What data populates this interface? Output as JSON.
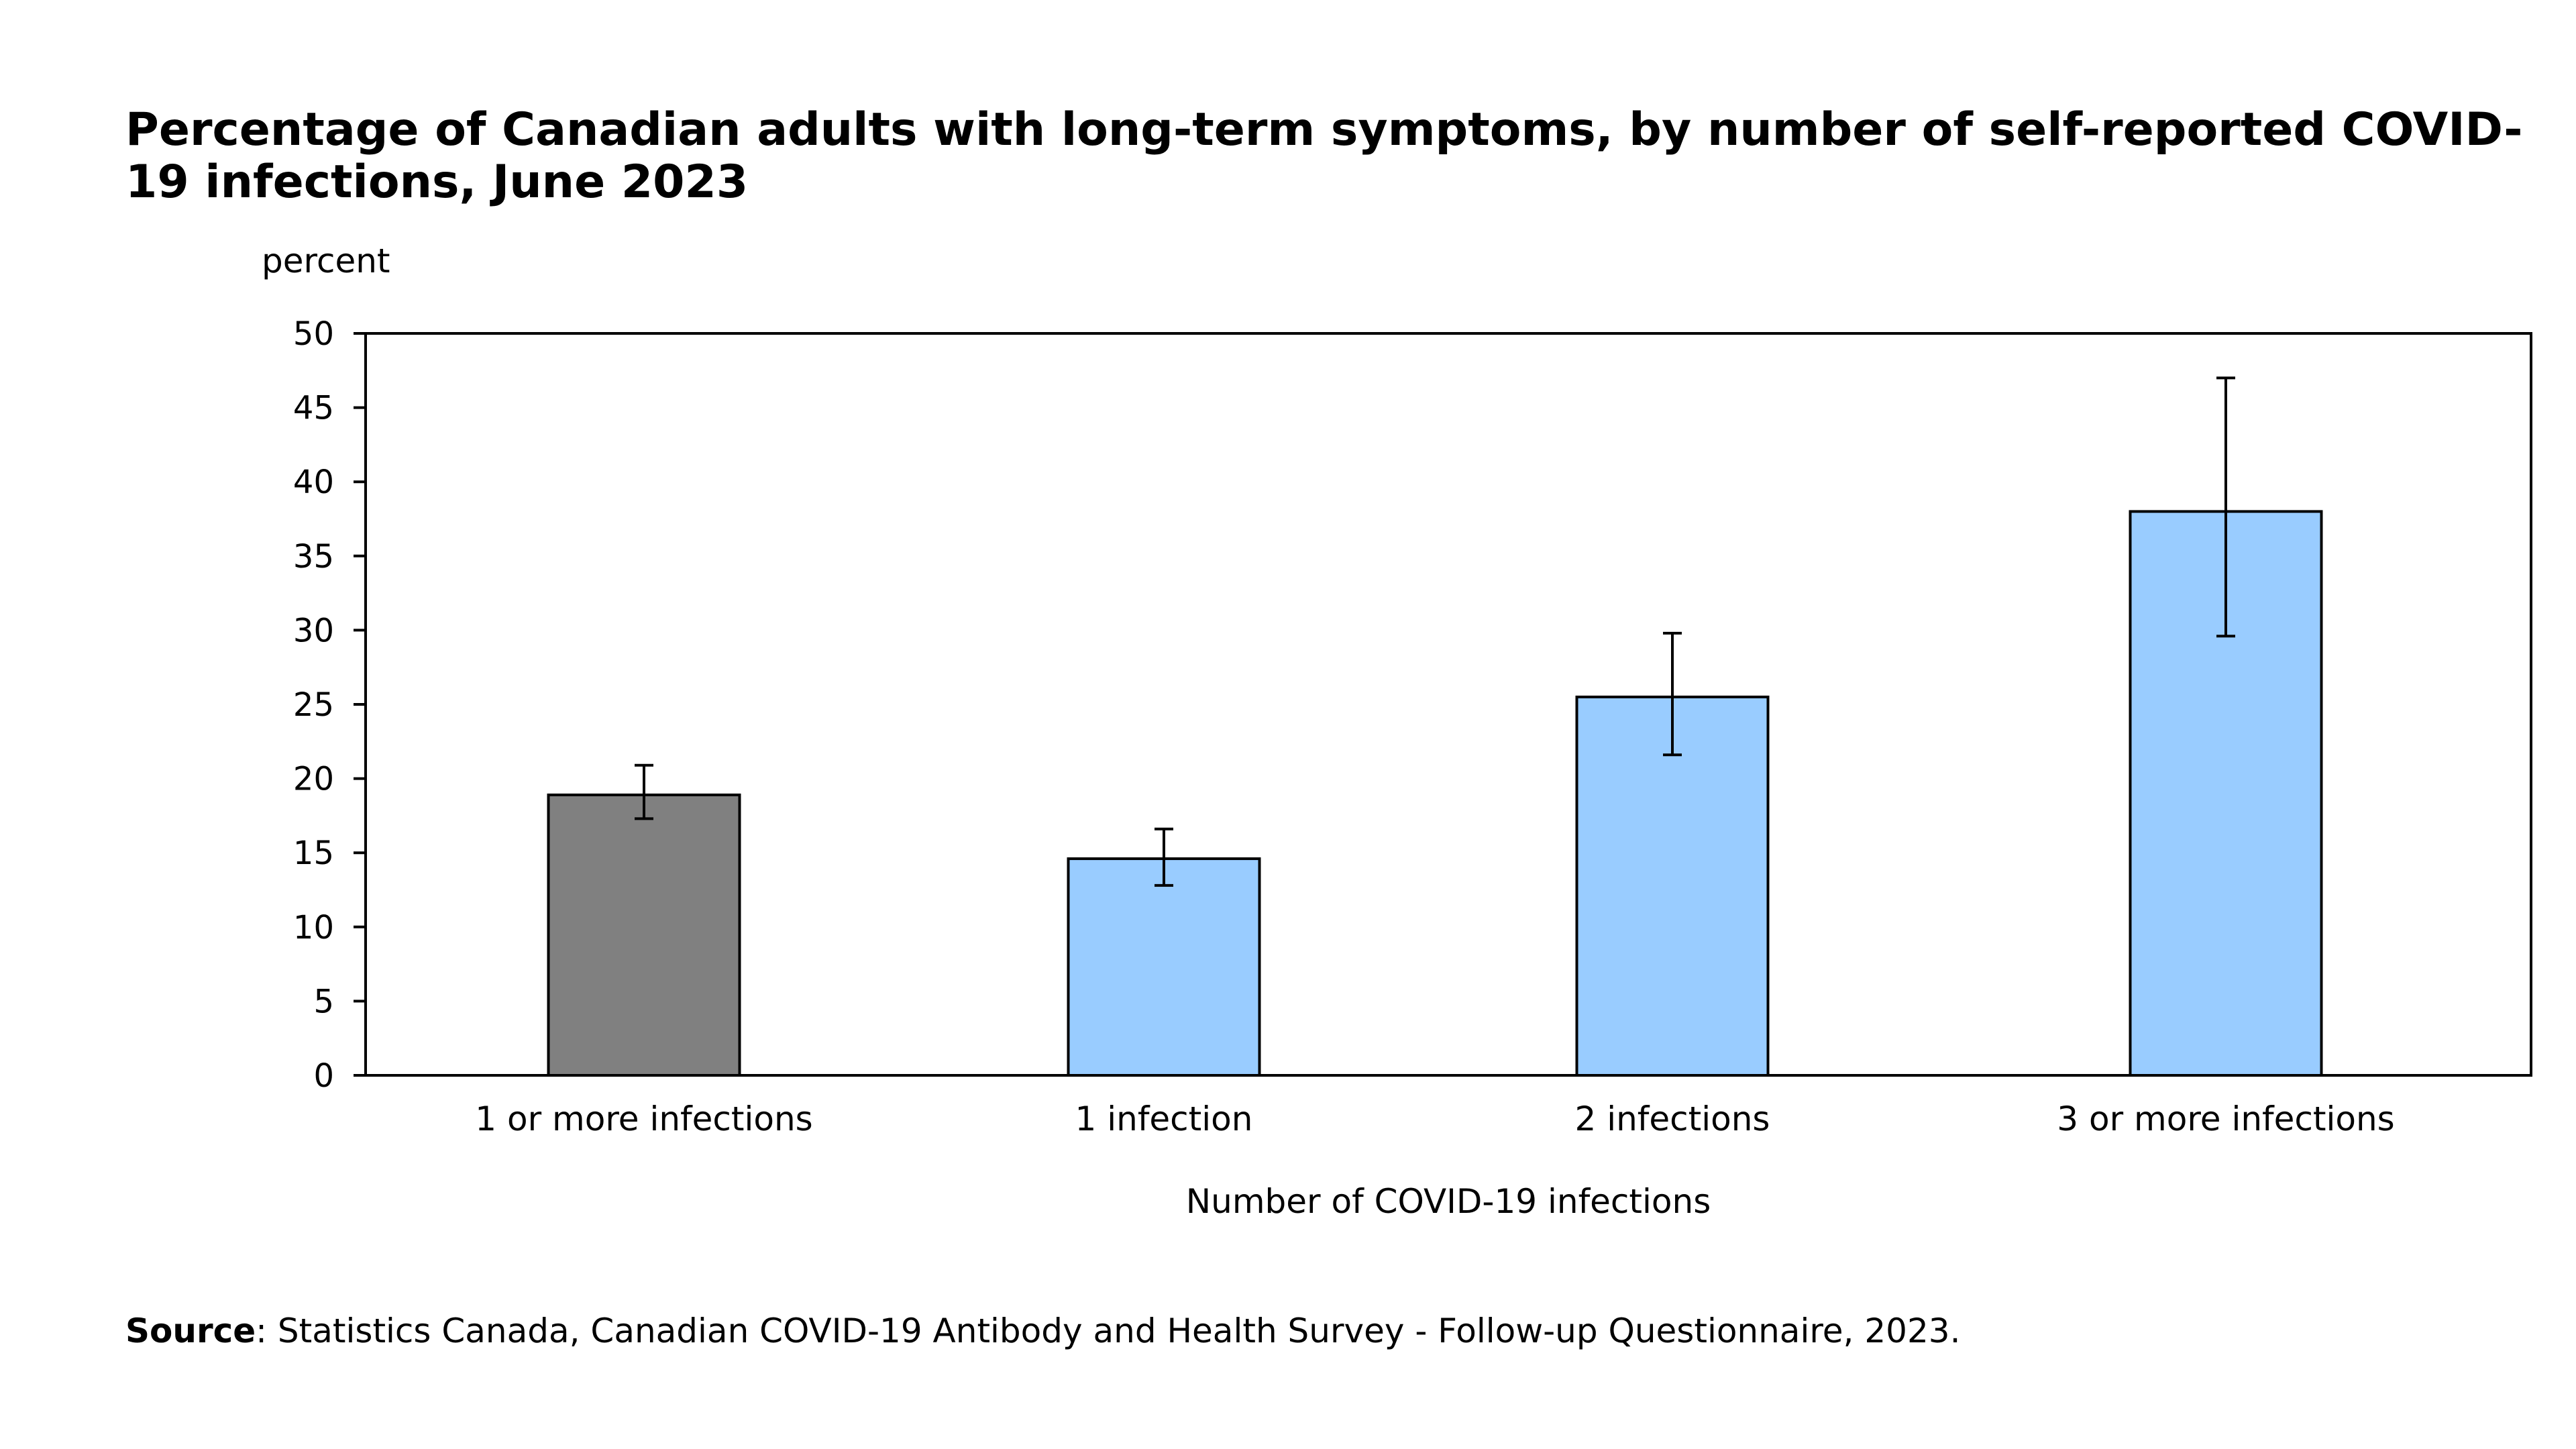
{
  "chart_data": {
    "type": "bar",
    "title": "Percentage of Canadian adults with long-term symptoms, by number of self-reported COVID-19 infections, June 2023",
    "ylabel": "percent",
    "xlabel": "Number of COVID-19 infections",
    "ylim": [
      0,
      50
    ],
    "yticks": [
      0,
      5,
      10,
      15,
      20,
      25,
      30,
      35,
      40,
      45,
      50
    ],
    "categories": [
      "1 or more infections",
      "1 infection",
      "2 infections",
      "3 or more infections"
    ],
    "values": [
      18.9,
      14.6,
      25.5,
      38.0
    ],
    "error_low": [
      17.3,
      12.8,
      21.6,
      29.6
    ],
    "error_high": [
      20.9,
      16.6,
      29.8,
      47.0
    ],
    "bar_colors": [
      "#808080",
      "#99ccff",
      "#99ccff",
      "#99ccff"
    ],
    "grid": false,
    "legend": "none"
  },
  "source": {
    "label": "Source",
    "text": ": Statistics Canada, Canadian COVID-19 Antibody and Health Survey - Follow-up Questionnaire, 2023."
  }
}
